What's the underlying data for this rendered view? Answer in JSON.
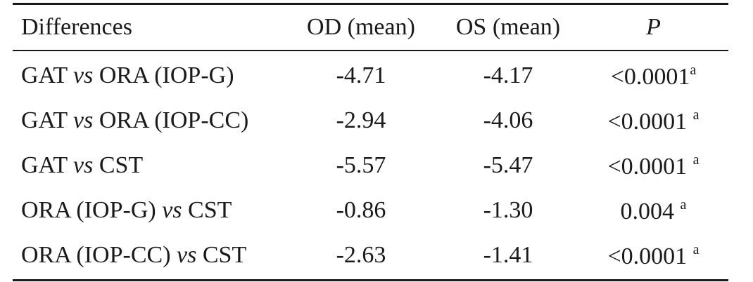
{
  "table": {
    "headers": {
      "differences": "Differences",
      "od": "OD (mean)",
      "os": "OS (mean)",
      "p": "P"
    },
    "rows": [
      {
        "pre": "GAT ",
        "vs": "vs",
        "post": " ORA (IOP-G)",
        "od": "-4.71",
        "os": "-4.17",
        "p": "<0.0001",
        "sup": "a"
      },
      {
        "pre": "GAT ",
        "vs": "vs",
        "post": " ORA (IOP-CC)",
        "od": "-2.94",
        "os": "-4.06",
        "p": "<0.0001 ",
        "sup": "a"
      },
      {
        "pre": "GAT ",
        "vs": "vs",
        "post": " CST",
        "od": "-5.57",
        "os": "-5.47",
        "p": "<0.0001 ",
        "sup": "a"
      },
      {
        "pre": "ORA (IOP-G) ",
        "vs": "vs",
        "post": " CST",
        "od": "-0.86",
        "os": "-1.30",
        "p": "0.004 ",
        "sup": "a"
      },
      {
        "pre": "ORA (IOP-CC) ",
        "vs": "vs",
        "post": " CST",
        "od": "-2.63",
        "os": "-1.41",
        "p": "<0.0001 ",
        "sup": "a"
      }
    ]
  }
}
